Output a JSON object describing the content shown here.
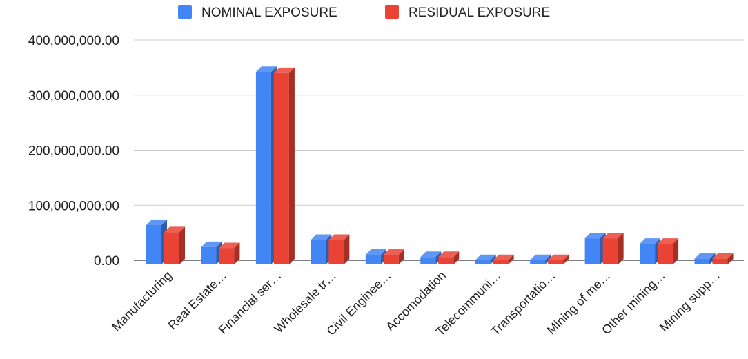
{
  "chart_data": {
    "type": "bar",
    "style": "3d-grouped",
    "categories": [
      "Manufacturing",
      "Real Estate…",
      "Financial ser…",
      "Wholesale tr…",
      "Civil Enginee…",
      "Accomodation",
      "Telecommuni…",
      "Transportatio…",
      "Mining of me…",
      "Other mining…",
      "Mining supp…"
    ],
    "series": [
      {
        "name": "NOMINAL EXPOSURE",
        "color": "#4285f4",
        "values": [
          64000000,
          24000000,
          342000000,
          37000000,
          10000000,
          6000000,
          300000,
          300000,
          40000000,
          30000000,
          3000000
        ]
      },
      {
        "name": "RESIDUAL EXPOSURE",
        "color": "#ea4335",
        "values": [
          51000000,
          22000000,
          340000000,
          37000000,
          10000000,
          6000000,
          300000,
          300000,
          40000000,
          30000000,
          3000000
        ]
      }
    ],
    "y_ticks": [
      "0.00",
      "100,000,000.00",
      "200,000,000.00",
      "300,000,000.00",
      "400,000,000.00"
    ],
    "ylim": [
      0,
      400000000
    ],
    "grid": true,
    "legend_position": "top"
  }
}
